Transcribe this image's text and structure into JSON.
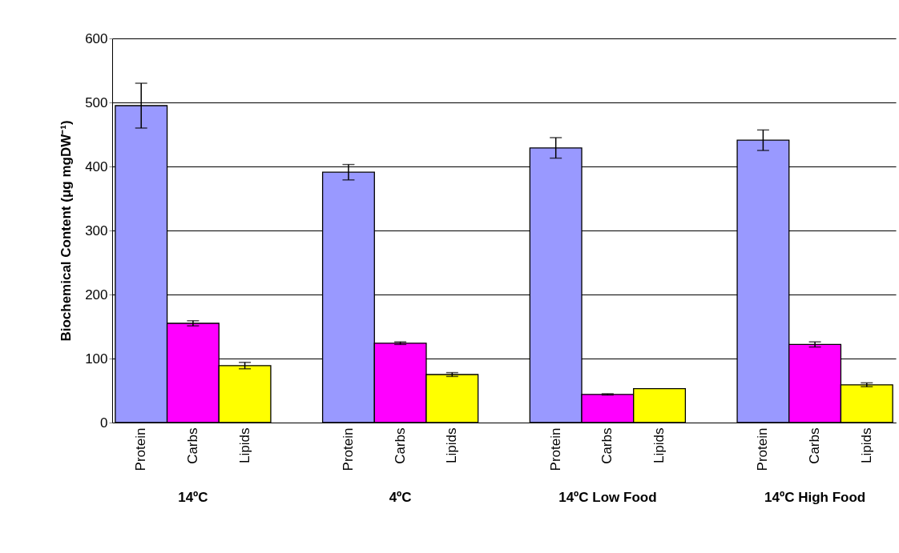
{
  "chart_data": {
    "type": "bar",
    "ylabel": "Biochemical Content (μg mgDW⁻¹)",
    "categories": [
      "Protein",
      "Carbs",
      "Lipids",
      "Protein",
      "Carbs",
      "Lipids",
      "Protein",
      "Carbs",
      "Lipids",
      "Protein",
      "Carbs",
      "Lipids"
    ],
    "values": [
      495,
      155,
      89,
      391,
      124,
      75,
      429,
      44,
      53,
      441,
      122,
      59
    ],
    "errors": [
      35,
      4,
      5,
      12,
      2,
      3,
      16,
      1,
      null,
      16,
      4,
      3
    ],
    "colors": [
      "#9999ff",
      "#ff00ff",
      "#ffff00",
      "#9999ff",
      "#ff00ff",
      "#ffff00",
      "#9999ff",
      "#ff00ff",
      "#ffff00",
      "#9999ff",
      "#ff00ff",
      "#ffff00"
    ],
    "ylim": [
      0,
      600
    ],
    "yticks": [
      0,
      100,
      200,
      300,
      400,
      500,
      600
    ],
    "grid": "y",
    "annotations": [
      "14ºC",
      "4ºC",
      "14ºC Low Food",
      "14ºC High Food"
    ]
  }
}
